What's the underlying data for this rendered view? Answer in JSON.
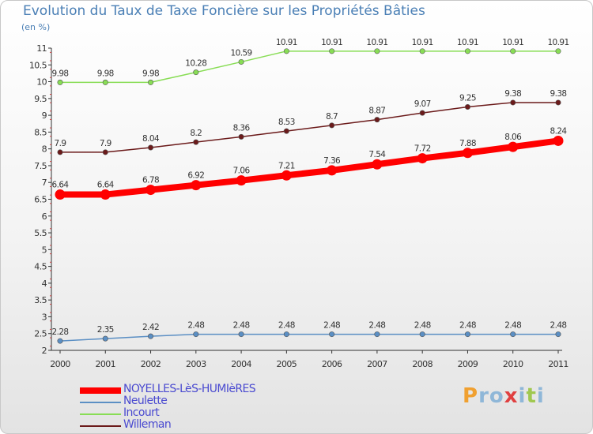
{
  "chart_data": {
    "type": "line",
    "title": "Evolution du Taux de Taxe Foncière sur les Propriétés Bâties",
    "subtitle": "(en %)",
    "categories": [
      "2000",
      "2001",
      "2002",
      "2003",
      "2004",
      "2005",
      "2006",
      "2007",
      "2008",
      "2009",
      "2010",
      "2011"
    ],
    "ylim": [
      2,
      11
    ],
    "yticks": [
      "2",
      "2.5",
      "3",
      "3.5",
      "4",
      "4.5",
      "5",
      "5.5",
      "6",
      "6.5",
      "7",
      "7.5",
      "8",
      "8.5",
      "9",
      "9.5",
      "10",
      "10.5",
      "11"
    ],
    "series": [
      {
        "name": "NOYELLES-LèS-HUMIèRES",
        "color": "#ff0000",
        "emphasis": true,
        "values": [
          6.64,
          6.64,
          6.78,
          6.92,
          7.06,
          7.21,
          7.36,
          7.54,
          7.72,
          7.88,
          8.06,
          8.24
        ],
        "labels": [
          "6.64",
          "6.64",
          "6.78",
          "6.92",
          "7.06",
          "7.21",
          "7.36",
          "7.54",
          "7.72",
          "7.88",
          "8.06",
          "8.24"
        ]
      },
      {
        "name": "Neulette",
        "color": "#5b8fc4",
        "emphasis": false,
        "values": [
          2.28,
          2.35,
          2.42,
          2.48,
          2.48,
          2.48,
          2.48,
          2.48,
          2.48,
          2.48,
          2.48,
          2.48
        ],
        "labels": [
          "2.28",
          "2.35",
          "2.42",
          "2.48",
          "2.48",
          "2.48",
          "2.48",
          "2.48",
          "2.48",
          "2.48",
          "2.48",
          "2.48"
        ]
      },
      {
        "name": "Incourt",
        "color": "#88dd55",
        "emphasis": false,
        "values": [
          9.98,
          9.98,
          9.98,
          10.28,
          10.59,
          10.91,
          10.91,
          10.91,
          10.91,
          10.91,
          10.91,
          10.91
        ],
        "labels": [
          "9.98",
          "9.98",
          "9.98",
          "10.28",
          "10.59",
          "10.91",
          "10.91",
          "10.91",
          "10.91",
          "10.91",
          "10.91",
          "10.91"
        ]
      },
      {
        "name": "Willeman",
        "color": "#6b1a1a",
        "emphasis": false,
        "values": [
          7.9,
          7.9,
          8.04,
          8.2,
          8.36,
          8.53,
          8.7,
          8.87,
          9.07,
          9.25,
          9.38,
          9.38
        ],
        "labels": [
          "7.9",
          "7.9",
          "8.04",
          "8.2",
          "8.36",
          "8.53",
          "8.7",
          "8.87",
          "9.07",
          "9.25",
          "9.38",
          "9.38"
        ]
      }
    ],
    "legend_position": "bottom-left"
  },
  "logo": {
    "text": "Proxiti",
    "letters": [
      "P",
      "r",
      "o",
      "x",
      "i",
      "t",
      "i"
    ],
    "colors": [
      "#f0a030",
      "#8fb7d8",
      "#8fb7d8",
      "#e04040",
      "#8fb7d8",
      "#a0c850",
      "#8fb7d8"
    ]
  }
}
